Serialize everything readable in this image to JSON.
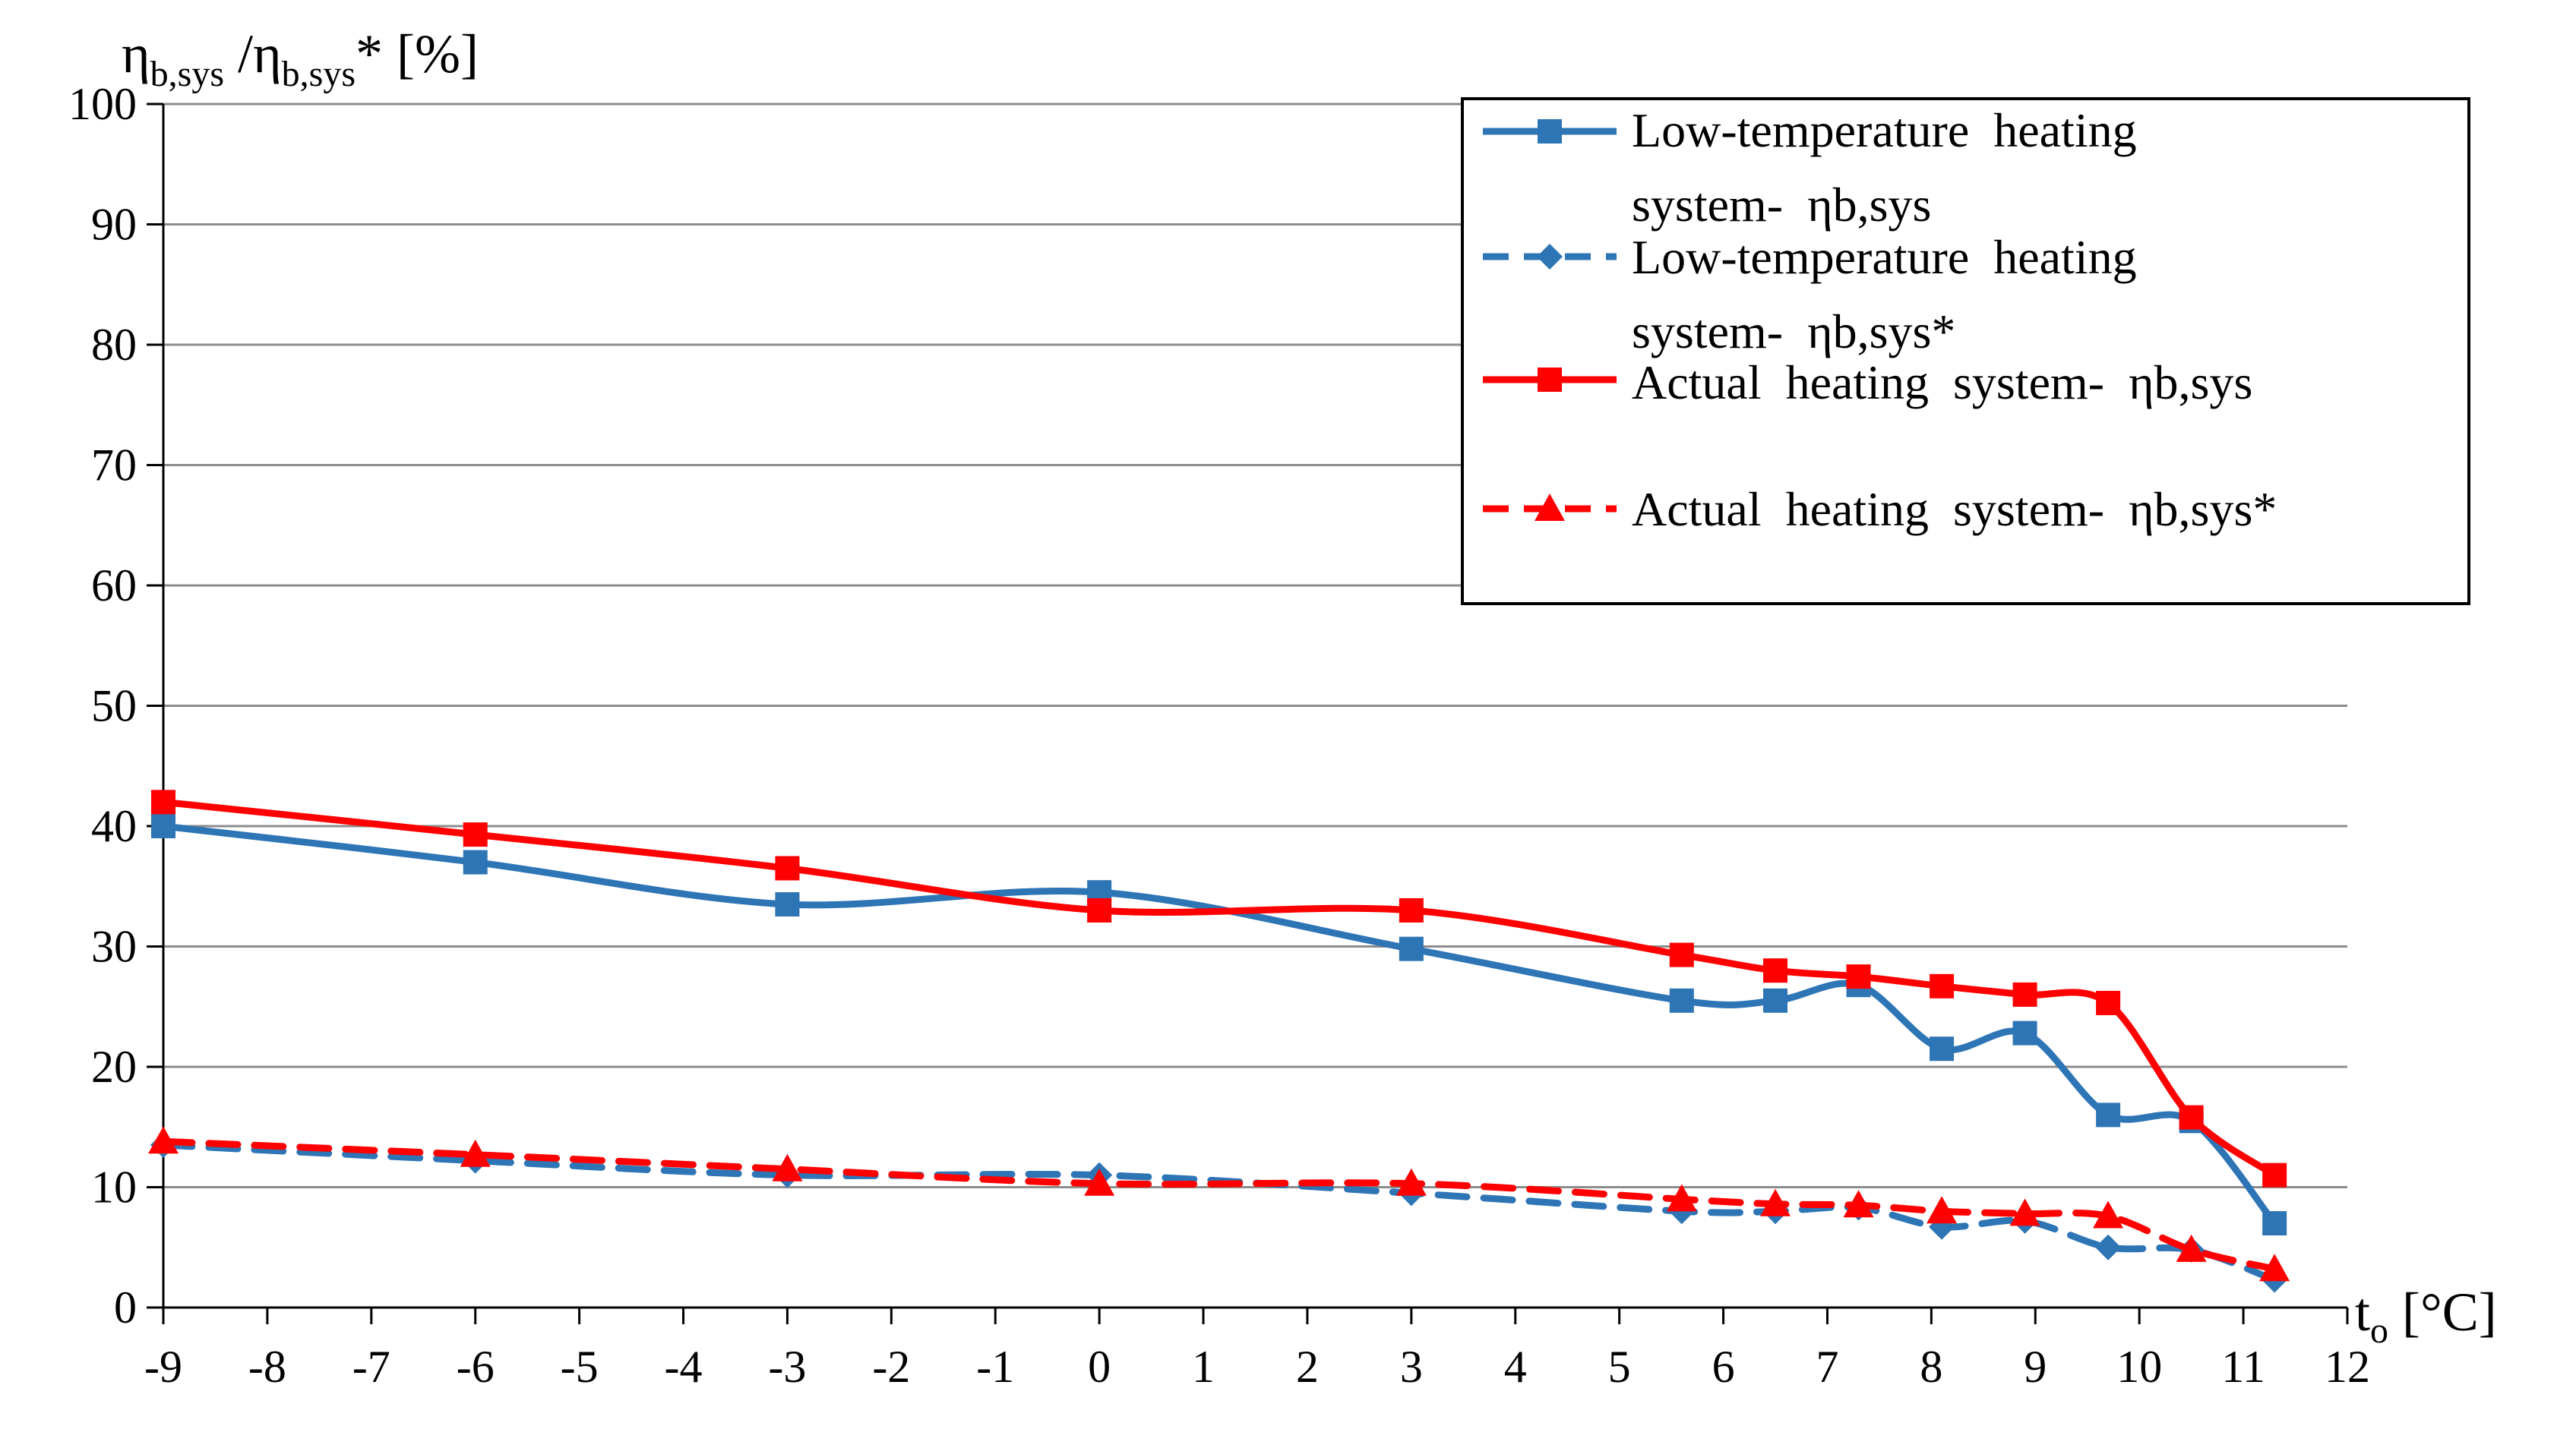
{
  "chart_data": {
    "type": "line",
    "ylabel": {
      "main": "η",
      "sub1": "b,sys",
      "sep": " /η",
      "sub2": "b,sys",
      "tail": "* [%]"
    },
    "xlabel": {
      "main": "t",
      "sub": "o",
      "tail": " [°C]"
    },
    "xlim": [
      -9,
      12
    ],
    "ylim": [
      0,
      100
    ],
    "x_ticks": [
      "-9",
      "-8",
      "-7",
      "-6",
      "-5",
      "-4",
      "-3",
      "-2",
      "-1",
      "0",
      "1",
      "2",
      "3",
      "4",
      "5",
      "6",
      "7",
      "8",
      "9",
      "10",
      "11",
      "12"
    ],
    "y_ticks": [
      "0",
      "10",
      "20",
      "30",
      "40",
      "50",
      "60",
      "70",
      "80",
      "90",
      "100"
    ],
    "grid": "horizontal",
    "legend_position": "top-right",
    "series": [
      {
        "name": "Low-temperature heating system- ηb,sys",
        "legend_lines": [
          "Low-temperature  heating",
          "system-  ηb,sys"
        ],
        "color": "#2E75B6",
        "dash": "solid",
        "marker": "square",
        "x": [
          -9,
          -6,
          -3,
          0,
          3,
          5.6,
          6.5,
          7.3,
          8.1,
          8.9,
          9.7,
          10.5,
          11.3
        ],
        "y": [
          40,
          37,
          33.5,
          34.5,
          29.8,
          25.5,
          25.5,
          26.8,
          21.5,
          22.8,
          16,
          15.5,
          7
        ]
      },
      {
        "name": "Low-temperature heating system- ηb,sys*",
        "legend_lines": [
          "Low-temperature  heating",
          "system-  ηb,sys*"
        ],
        "color": "#2E75B6",
        "dash": "dashed",
        "marker": "diamond",
        "x": [
          -9,
          -6,
          -3,
          0,
          3,
          5.6,
          6.5,
          7.3,
          8.1,
          8.9,
          9.7,
          10.5,
          11.3
        ],
        "y": [
          13.5,
          12.2,
          11,
          11,
          9.5,
          8,
          8,
          8.3,
          6.7,
          7.2,
          5,
          4.8,
          2.3
        ]
      },
      {
        "name": "Actual heating system- ηb,sys",
        "legend_lines": [
          "Actual  heating  system-  ηb,sys"
        ],
        "color": "#FF0000",
        "dash": "solid",
        "marker": "square",
        "x": [
          -9,
          -6,
          -3,
          0,
          3,
          5.6,
          6.5,
          7.3,
          8.1,
          8.9,
          9.7,
          10.5,
          11.3
        ],
        "y": [
          42,
          39.3,
          36.5,
          33,
          33,
          29.3,
          28,
          27.5,
          26.7,
          26,
          25.3,
          15.8,
          11
        ]
      },
      {
        "name": "Actual heating system- ηb,sys*",
        "legend_lines": [
          "Actual  heating  system-  ηb,sys*"
        ],
        "color": "#FF0000",
        "dash": "dashed",
        "marker": "triangle",
        "x": [
          -9,
          -6,
          -3,
          0,
          3,
          5.6,
          6.5,
          7.3,
          8.1,
          8.9,
          9.7,
          10.5,
          11.3
        ],
        "y": [
          13.8,
          12.7,
          11.5,
          10.3,
          10.3,
          9,
          8.6,
          8.5,
          8,
          7.8,
          7.6,
          4.8,
          3.2
        ]
      }
    ]
  }
}
